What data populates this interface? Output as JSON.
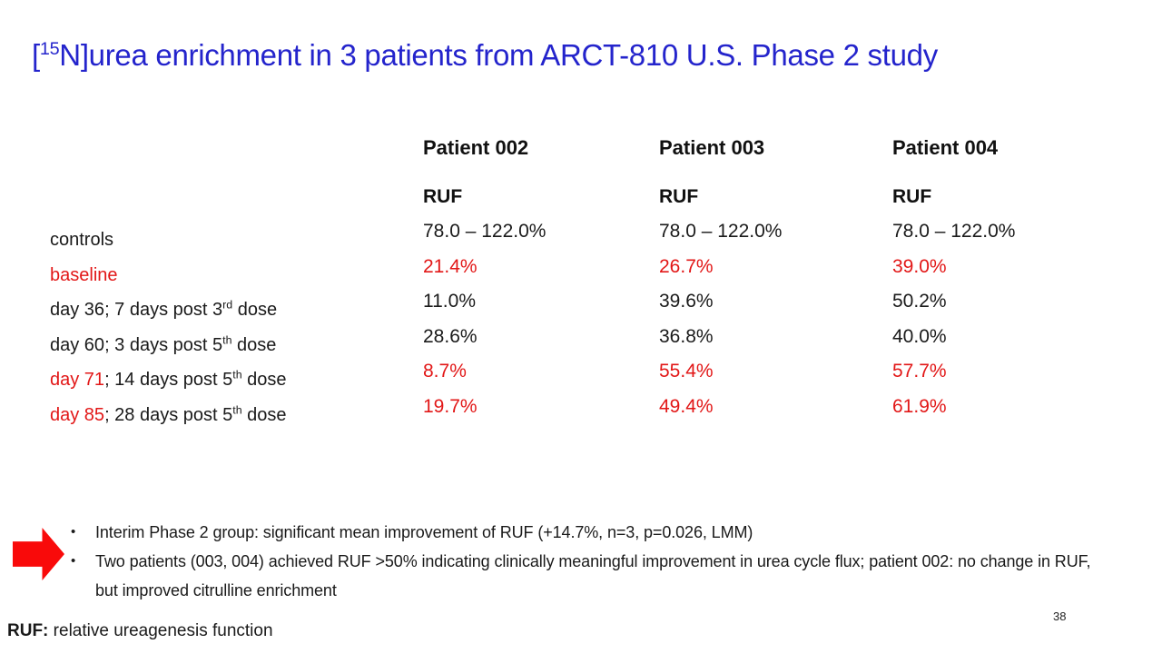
{
  "colors": {
    "title_blue": "#2424cc",
    "accent_red": "#e21717",
    "arrow_red": "#f90a0a",
    "text_black": "#1a1a1a",
    "background": "#ffffff"
  },
  "title": {
    "prefix": "[",
    "superscript": "15",
    "rest": "N]urea enrichment in 3 patients from ARCT-810 U.S. Phase 2 study"
  },
  "table": {
    "row_labels": [
      {
        "lead": "controls",
        "mid": "",
        "sup": "",
        "tail": ""
      },
      {
        "lead": "baseline",
        "mid": "",
        "sup": "",
        "tail": ""
      },
      {
        "lead": "day 36",
        "mid": "; 7 days post 3",
        "sup": "rd",
        "tail": " dose"
      },
      {
        "lead": "day 60",
        "mid": "; 3 days post 5",
        "sup": "th",
        "tail": " dose"
      },
      {
        "lead": "day 71",
        "mid": "; 14 days post 5",
        "sup": "th",
        "tail": " dose"
      },
      {
        "lead": "day 85",
        "mid": "; 28 days post 5",
        "sup": "th",
        "tail": " dose"
      }
    ],
    "columns": [
      {
        "patient": "Patient 002",
        "measure": "RUF",
        "values": [
          "78.0 – 122.0%",
          "21.4%",
          "11.0%",
          "28.6%",
          "8.7%",
          "19.7%"
        ]
      },
      {
        "patient": "Patient 003",
        "measure": "RUF",
        "values": [
          "78.0 – 122.0%",
          "26.7%",
          "39.6%",
          "36.8%",
          "55.4%",
          "49.4%"
        ]
      },
      {
        "patient": "Patient 004",
        "measure": "RUF",
        "values": [
          "78.0 – 122.0%",
          "39.0%",
          "50.2%",
          "40.0%",
          "57.7%",
          "61.9%"
        ]
      }
    ]
  },
  "bullets": [
    "Interim Phase 2 group: significant mean improvement of RUF (+14.7%, n=3, p=0.026, LMM)",
    "Two patients (003, 004) achieved RUF >50% indicating clinically meaningful improvement in urea cycle flux; patient 002: no change in RUF, but improved citrulline enrichment"
  ],
  "bullet_marker": "•",
  "footnote": {
    "term": "RUF:",
    "definition": " relative ureagenesis function"
  },
  "page_number": "38"
}
